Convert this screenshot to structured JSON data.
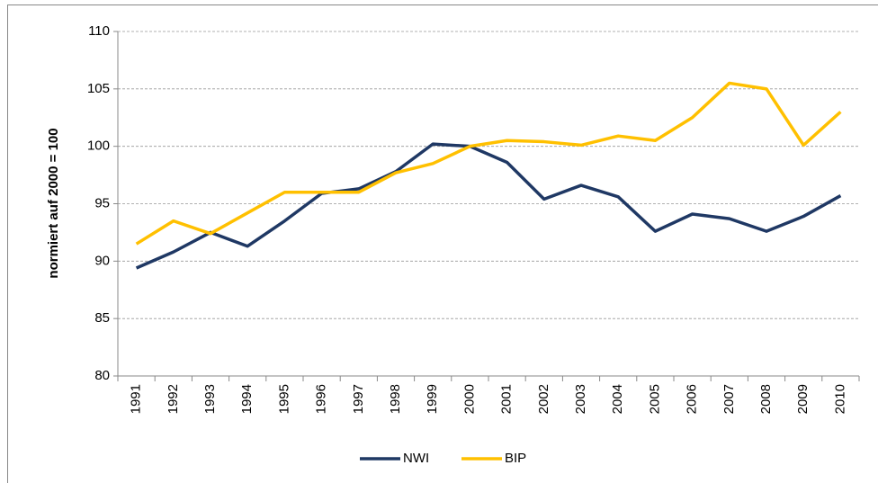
{
  "chart_data": {
    "type": "line",
    "y_label": "normiert auf 2000 = 100",
    "categories": [
      "1991",
      "1992",
      "1993",
      "1994",
      "1995",
      "1996",
      "1997",
      "1998",
      "1999",
      "2000",
      "2001",
      "2002",
      "2003",
      "2004",
      "2005",
      "2006",
      "2007",
      "2008",
      "2009",
      "2010"
    ],
    "series": [
      {
        "name": "NWI",
        "color": "#1f3864",
        "values": [
          89.4,
          90.8,
          92.5,
          91.3,
          93.5,
          95.9,
          96.3,
          97.8,
          100.2,
          100.0,
          98.6,
          95.4,
          96.6,
          95.6,
          92.6,
          94.1,
          93.7,
          92.6,
          93.9,
          95.7
        ]
      },
      {
        "name": "BIP",
        "color": "#ffc000",
        "values": [
          91.5,
          93.5,
          92.4,
          94.2,
          96.0,
          96.0,
          96.0,
          97.7,
          98.5,
          100.0,
          100.5,
          100.4,
          100.1,
          100.9,
          100.5,
          102.5,
          105.5,
          105.0,
          100.1,
          103.0
        ]
      }
    ],
    "ylim": [
      80,
      110
    ],
    "yticks": [
      80,
      85,
      90,
      95,
      100,
      105,
      110
    ],
    "grid": true,
    "legend": "bottom"
  }
}
